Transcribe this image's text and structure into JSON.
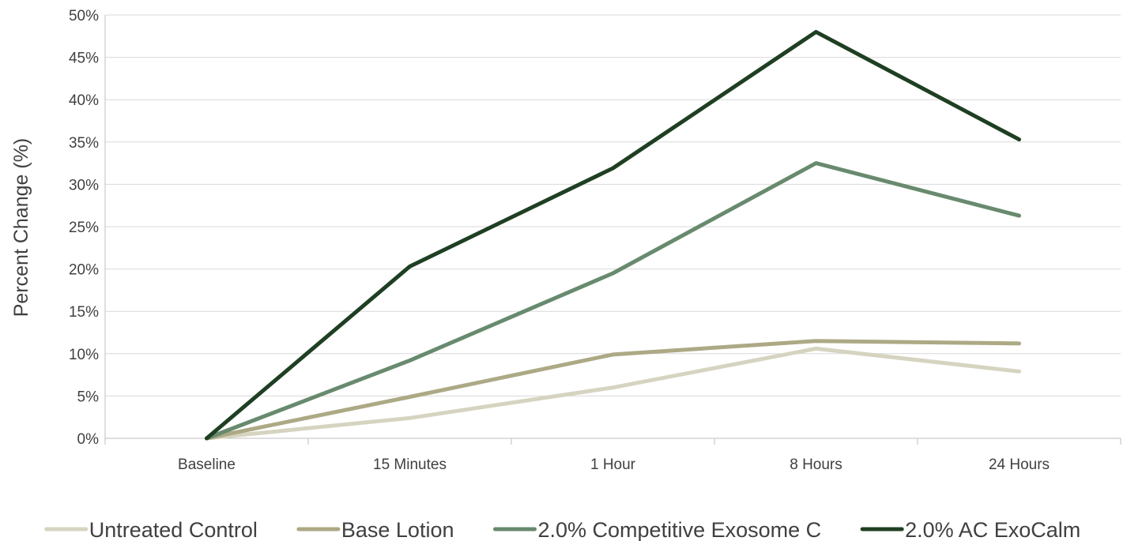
{
  "chart_data": {
    "type": "line",
    "title": "",
    "xlabel": "",
    "ylabel": "Percent Change (%)",
    "categories": [
      "Baseline",
      "15 Minutes",
      "1 Hour",
      "8 Hours",
      "24 Hours"
    ],
    "ylim": [
      0,
      50
    ],
    "yticks": [
      0,
      5,
      10,
      15,
      20,
      25,
      30,
      35,
      40,
      45,
      50
    ],
    "ytick_labels": [
      "0%",
      "5%",
      "10%",
      "15%",
      "20%",
      "25%",
      "30%",
      "35%",
      "40%",
      "45%",
      "50%"
    ],
    "grid": true,
    "legend_position": "bottom",
    "series": [
      {
        "name": "Untreated Control",
        "color": "#d6d4c0",
        "values": [
          0,
          2.4,
          6.0,
          10.6,
          7.9
        ]
      },
      {
        "name": "Base Lotion",
        "color": "#aca985",
        "values": [
          0,
          4.9,
          9.9,
          11.5,
          11.2
        ]
      },
      {
        "name": "2.0% Competitive Exosome C",
        "color": "#688a6e",
        "values": [
          0,
          9.2,
          19.5,
          32.5,
          26.3
        ]
      },
      {
        "name": "2.0% AC ExoCalm",
        "color": "#1f3f22",
        "values": [
          0,
          20.3,
          31.9,
          48.0,
          35.3
        ]
      }
    ]
  }
}
